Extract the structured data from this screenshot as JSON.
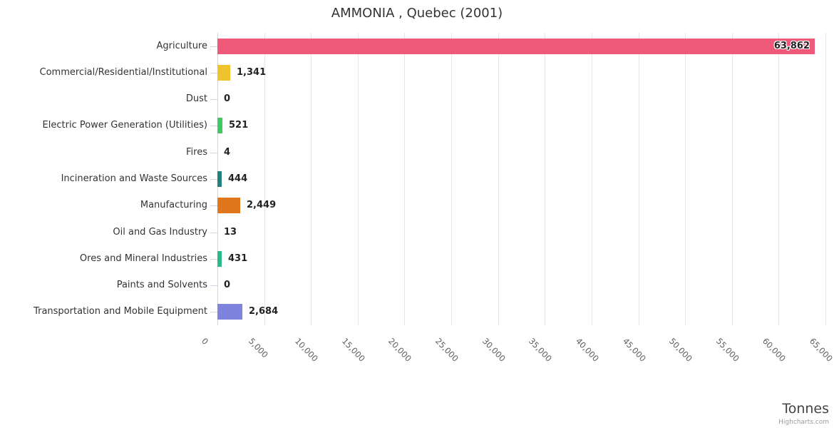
{
  "chart": {
    "title": "AMMONIA , Quebec (2001)",
    "y_axis_title": "Tonnes",
    "credit": "Highcharts.com"
  },
  "chart_data": {
    "type": "bar",
    "orientation": "horizontal",
    "title": "AMMONIA , Quebec (2001)",
    "value_axis_title": "Tonnes",
    "categories": [
      "Agriculture",
      "Commercial/Residential/Institutional",
      "Dust",
      "Electric Power Generation (Utilities)",
      "Fires",
      "Incineration and Waste Sources",
      "Manufacturing",
      "Oil and Gas Industry",
      "Ores and Mineral Industries",
      "Paints and Solvents",
      "Transportation and Mobile Equipment"
    ],
    "values": [
      63862,
      1341,
      0,
      521,
      4,
      444,
      2449,
      13,
      431,
      0,
      2684
    ],
    "value_labels": [
      "63,862",
      "1,341",
      "0",
      "521",
      "4",
      "444",
      "2,449",
      "13",
      "431",
      "0",
      "2,684"
    ],
    "bar_colors": [
      "#ee5879",
      "#eec32e",
      null,
      "#3fc964",
      null,
      "#22807f",
      "#e0771c",
      null,
      "#29ba8b",
      null,
      "#7e83de"
    ],
    "xlim": [
      0,
      65000
    ],
    "x_tick_step": 5000,
    "x_tick_labels": [
      "0",
      "5,000",
      "10,000",
      "15,000",
      "20,000",
      "25,000",
      "30,000",
      "35,000",
      "40,000",
      "45,000",
      "50,000",
      "55,000",
      "60,000",
      "65,000"
    ],
    "x_label_rotation_deg": 46,
    "grid": "vertical-only",
    "legend": "none",
    "theme": {
      "background": "#ffffff",
      "grid_color": "#e6e6e6",
      "axis_line_color": "#ccd6eb",
      "title_color": "#333333",
      "category_label_color": "#333333",
      "value_label_color": "#222222",
      "tick_label_color": "#606060",
      "axis_title_color": "#444444",
      "credit_color": "#999999"
    }
  }
}
